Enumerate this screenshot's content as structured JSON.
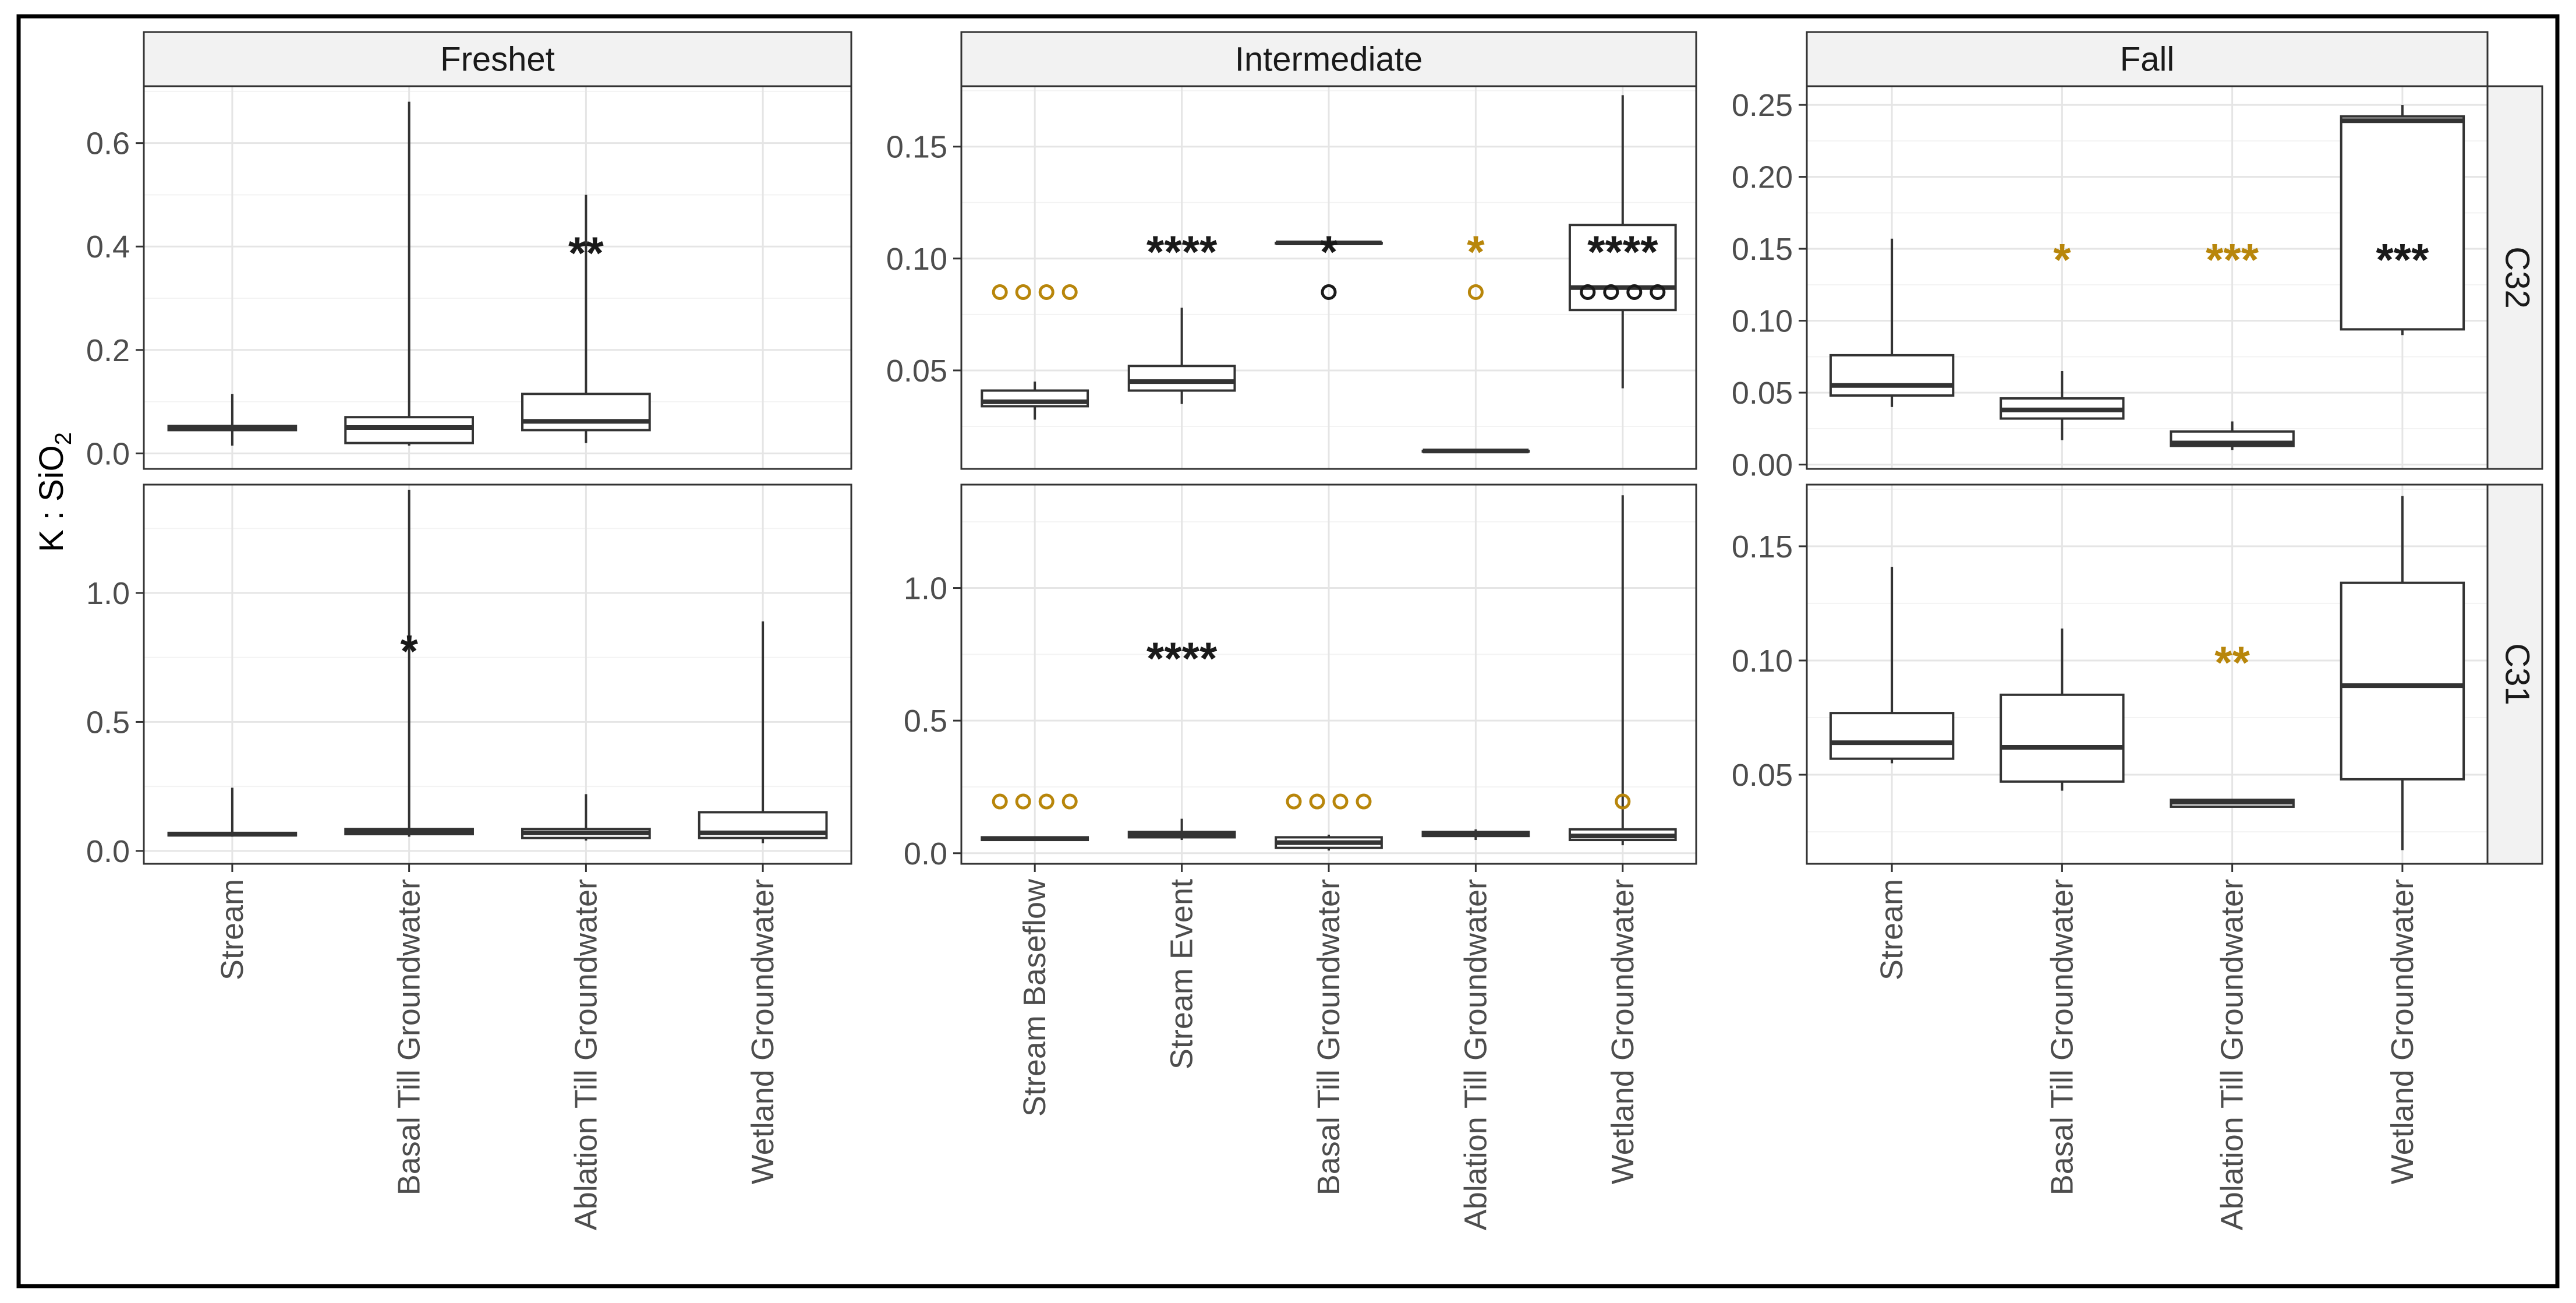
{
  "figure": {
    "y_label_main": "K : SiO",
    "y_label_sub": "2",
    "columns": [
      "Freshet",
      "Intermediate",
      "Fall"
    ],
    "rows": [
      "C32",
      "C31"
    ],
    "colors": {
      "black": "#1a1a1a",
      "orange": "#b8860b",
      "grid_major": "#e5e5e5",
      "grid_minor": "#f3f3f3",
      "strip_bg": "#f2f2f2"
    }
  },
  "chart_data": [
    {
      "type": "box",
      "panel": "Freshet C32",
      "column": "Freshet",
      "row": "C32",
      "categories": [
        "Stream",
        "Basal Till Groundwater",
        "Ablation Till Groundwater",
        "Wetland Groundwater"
      ],
      "ylim": [
        -0.03,
        0.71
      ],
      "yticks": [
        0.0,
        0.2,
        0.4,
        0.6
      ],
      "ytick_labels": [
        "0.0",
        "0.2",
        "0.4",
        "0.6"
      ],
      "boxes": [
        {
          "min": 0.015,
          "q1": 0.045,
          "median": 0.05,
          "q3": 0.053,
          "max": 0.115
        },
        {
          "min": 0.015,
          "q1": 0.02,
          "median": 0.05,
          "q3": 0.07,
          "max": 0.68
        },
        {
          "min": 0.02,
          "q1": 0.045,
          "median": 0.062,
          "q3": 0.115,
          "max": 0.5
        },
        null
      ],
      "annotations": [
        {
          "category": 2,
          "y": 0.4,
          "text": "**",
          "color": "black"
        }
      ],
      "outlier_rows": []
    },
    {
      "type": "box",
      "panel": "Intermediate C32",
      "column": "Intermediate",
      "row": "C32",
      "categories": [
        "Stream Baseflow",
        "Stream Event",
        "Basal Till Groundwater",
        "Ablation Till Groundwater",
        "Wetland Groundwater"
      ],
      "ylim": [
        0.006,
        0.177
      ],
      "yticks": [
        0.05,
        0.1,
        0.15
      ],
      "ytick_labels": [
        "0.05",
        "0.10",
        "0.15"
      ],
      "boxes": [
        {
          "min": 0.028,
          "q1": 0.034,
          "median": 0.036,
          "q3": 0.041,
          "max": 0.045
        },
        {
          "min": 0.035,
          "q1": 0.041,
          "median": 0.045,
          "q3": 0.052,
          "max": 0.078
        },
        {
          "min": 0.107,
          "q1": 0.107,
          "median": 0.107,
          "q3": 0.107,
          "max": 0.107
        },
        {
          "min": 0.014,
          "q1": 0.014,
          "median": 0.014,
          "q3": 0.014,
          "max": 0.014
        },
        {
          "min": 0.042,
          "q1": 0.077,
          "median": 0.087,
          "q3": 0.115,
          "max": 0.173
        }
      ],
      "annotations": [
        {
          "category": 1,
          "y": 0.106,
          "text": "****",
          "color": "black"
        },
        {
          "category": 2,
          "y": 0.106,
          "text": "*",
          "color": "black"
        },
        {
          "category": 3,
          "y": 0.106,
          "text": "*",
          "color": "orange"
        },
        {
          "category": 4,
          "y": 0.106,
          "text": "****",
          "color": "black"
        }
      ],
      "outlier_rows": [
        {
          "category": 0,
          "y": 0.085,
          "count": 4,
          "color": "orange"
        },
        {
          "category": 2,
          "y": 0.085,
          "count": 1,
          "color": "black"
        },
        {
          "category": 3,
          "y": 0.085,
          "count": 1,
          "color": "orange"
        },
        {
          "category": 4,
          "y": 0.085,
          "count": 4,
          "color": "black"
        }
      ]
    },
    {
      "type": "box",
      "panel": "Fall C32",
      "column": "Fall",
      "row": "C32",
      "categories": [
        "Stream",
        "Basal Till Groundwater",
        "Ablation Till Groundwater",
        "Wetland Groundwater"
      ],
      "ylim": [
        -0.003,
        0.263
      ],
      "yticks": [
        0.0,
        0.05,
        0.1,
        0.15,
        0.2,
        0.25
      ],
      "ytick_labels": [
        "0.00",
        "0.05",
        "0.10",
        "0.15",
        "0.20",
        "0.25"
      ],
      "boxes": [
        {
          "min": 0.04,
          "q1": 0.048,
          "median": 0.055,
          "q3": 0.076,
          "max": 0.157
        },
        {
          "min": 0.017,
          "q1": 0.032,
          "median": 0.038,
          "q3": 0.046,
          "max": 0.065
        },
        {
          "min": 0.01,
          "q1": 0.013,
          "median": 0.015,
          "q3": 0.023,
          "max": 0.03
        },
        {
          "min": 0.09,
          "q1": 0.094,
          "median": 0.239,
          "q3": 0.242,
          "max": 0.25
        }
      ],
      "annotations": [
        {
          "category": 1,
          "y": 0.147,
          "text": "*",
          "color": "orange"
        },
        {
          "category": 2,
          "y": 0.147,
          "text": "***",
          "color": "orange"
        },
        {
          "category": 3,
          "y": 0.147,
          "text": "***",
          "color": "black"
        }
      ],
      "outlier_rows": []
    },
    {
      "type": "box",
      "panel": "Freshet C31",
      "column": "Freshet",
      "row": "C31",
      "categories": [
        "Stream",
        "Basal Till Groundwater",
        "Ablation Till Groundwater",
        "Wetland Groundwater"
      ],
      "ylim": [
        -0.05,
        1.42
      ],
      "yticks": [
        0.0,
        0.5,
        1.0
      ],
      "ytick_labels": [
        "0.0",
        "0.5",
        "1.0"
      ],
      "boxes": [
        {
          "min": 0.055,
          "q1": 0.06,
          "median": 0.065,
          "q3": 0.07,
          "max": 0.245
        },
        {
          "min": 0.055,
          "q1": 0.065,
          "median": 0.075,
          "q3": 0.085,
          "max": 1.4
        },
        {
          "min": 0.04,
          "q1": 0.05,
          "median": 0.07,
          "q3": 0.085,
          "max": 0.22
        },
        {
          "min": 0.03,
          "q1": 0.05,
          "median": 0.07,
          "q3": 0.15,
          "max": 0.89
        }
      ],
      "annotations": [
        {
          "category": 1,
          "y": 0.8,
          "text": "*",
          "color": "black"
        }
      ],
      "outlier_rows": []
    },
    {
      "type": "box",
      "panel": "Intermediate C31",
      "column": "Intermediate",
      "row": "C31",
      "categories": [
        "Stream Baseflow",
        "Stream Event",
        "Basal Till Groundwater",
        "Ablation Till Groundwater",
        "Wetland Groundwater"
      ],
      "ylim": [
        -0.04,
        1.39
      ],
      "yticks": [
        0.0,
        0.5,
        1.0
      ],
      "ytick_labels": [
        "0.0",
        "0.5",
        "1.0"
      ],
      "boxes": [
        {
          "min": 0.05,
          "q1": 0.05,
          "median": 0.055,
          "q3": 0.06,
          "max": 0.06
        },
        {
          "min": 0.05,
          "q1": 0.06,
          "median": 0.07,
          "q3": 0.08,
          "max": 0.13
        },
        {
          "min": 0.01,
          "q1": 0.02,
          "median": 0.04,
          "q3": 0.06,
          "max": 0.07
        },
        {
          "min": 0.05,
          "q1": 0.065,
          "median": 0.07,
          "q3": 0.08,
          "max": 0.09
        },
        {
          "min": 0.03,
          "q1": 0.05,
          "median": 0.065,
          "q3": 0.09,
          "max": 1.35
        }
      ],
      "annotations": [
        {
          "category": 1,
          "y": 0.76,
          "text": "****",
          "color": "black"
        }
      ],
      "outlier_rows": [
        {
          "category": 0,
          "y": 0.195,
          "count": 4,
          "color": "orange"
        },
        {
          "category": 2,
          "y": 0.195,
          "count": 4,
          "color": "orange"
        },
        {
          "category": 4,
          "y": 0.195,
          "count": 1,
          "color": "orange"
        }
      ]
    },
    {
      "type": "box",
      "panel": "Fall C31",
      "column": "Fall",
      "row": "C31",
      "categories": [
        "Stream",
        "Basal Till Groundwater",
        "Ablation Till Groundwater",
        "Wetland Groundwater"
      ],
      "ylim": [
        0.011,
        0.177
      ],
      "yticks": [
        0.05,
        0.1,
        0.15
      ],
      "ytick_labels": [
        "0.05",
        "0.10",
        "0.15"
      ],
      "boxes": [
        {
          "min": 0.055,
          "q1": 0.057,
          "median": 0.064,
          "q3": 0.077,
          "max": 0.141
        },
        {
          "min": 0.043,
          "q1": 0.047,
          "median": 0.062,
          "q3": 0.085,
          "max": 0.114
        },
        {
          "min": 0.036,
          "q1": 0.036,
          "median": 0.038,
          "q3": 0.039,
          "max": 0.039
        },
        {
          "min": 0.017,
          "q1": 0.048,
          "median": 0.089,
          "q3": 0.134,
          "max": 0.172
        }
      ],
      "annotations": [
        {
          "category": 2,
          "y": 0.102,
          "text": "**",
          "color": "orange"
        }
      ],
      "outlier_rows": []
    }
  ]
}
